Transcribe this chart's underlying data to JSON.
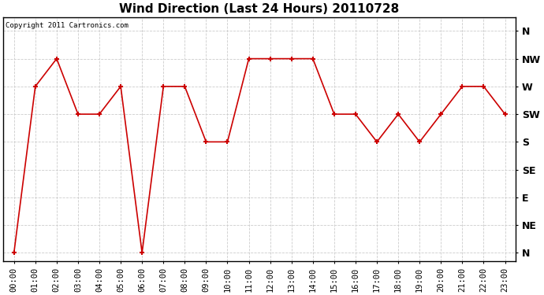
{
  "title": "Wind Direction (Last 24 Hours) 20110728",
  "copyright_text": "Copyright 2011 Cartronics.com",
  "x_labels": [
    "00:00",
    "01:00",
    "02:00",
    "03:00",
    "04:00",
    "05:00",
    "06:00",
    "07:00",
    "08:00",
    "09:00",
    "10:00",
    "11:00",
    "12:00",
    "13:00",
    "14:00",
    "15:00",
    "16:00",
    "17:00",
    "18:00",
    "19:00",
    "20:00",
    "21:00",
    "22:00",
    "23:00"
  ],
  "y_labels": [
    "N",
    "NE",
    "E",
    "SE",
    "S",
    "SW",
    "W",
    "NW",
    "N"
  ],
  "y_values": [
    0,
    1,
    2,
    3,
    4,
    5,
    6,
    7,
    8
  ],
  "wind_data": [
    0,
    6,
    7,
    5,
    5,
    6,
    0,
    6,
    6,
    4,
    4,
    7,
    7,
    7,
    7,
    5,
    5,
    4,
    5,
    4,
    5,
    6,
    6,
    5
  ],
  "line_color": "#CC0000",
  "marker": "+",
  "marker_size": 5,
  "marker_linewidth": 1.5,
  "background_color": "#ffffff",
  "grid_color": "#cccccc",
  "title_fontsize": 11,
  "tick_fontsize": 7.5,
  "ylabel_fontsize": 9,
  "copyright_fontsize": 6.5
}
